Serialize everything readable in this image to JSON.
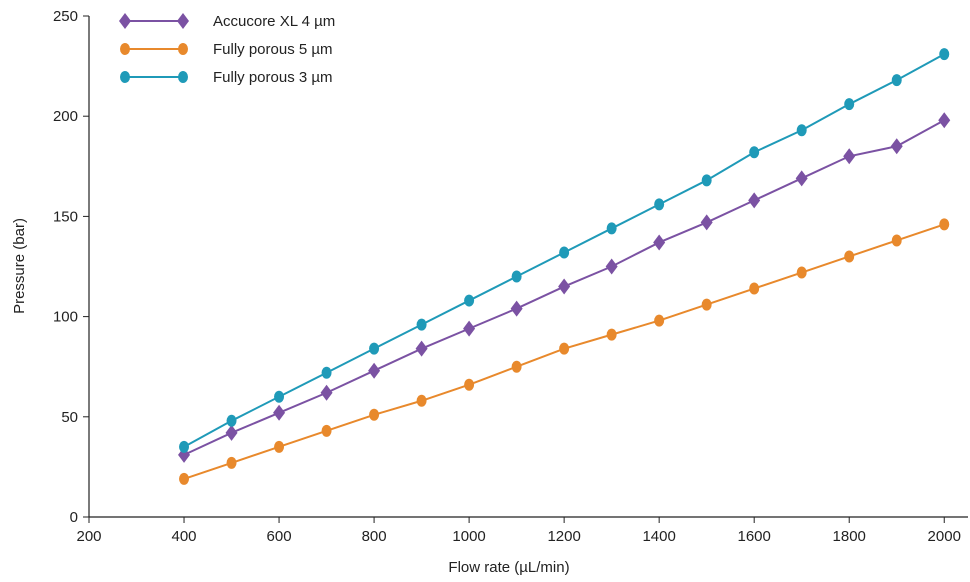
{
  "chart_data": {
    "type": "line",
    "title": "",
    "xlabel": "Flow rate (µL/min)",
    "ylabel": "Pressure (bar)",
    "xlim": [
      200,
      2050
    ],
    "ylim": [
      0,
      250
    ],
    "xticks": [
      200,
      400,
      600,
      800,
      1000,
      1200,
      1400,
      1600,
      1800,
      2000
    ],
    "yticks": [
      0,
      50,
      100,
      150,
      200,
      250
    ],
    "grid": false,
    "legend_position": "top-left",
    "x": [
      400,
      500,
      600,
      700,
      800,
      900,
      1000,
      1100,
      1200,
      1300,
      1400,
      1500,
      1600,
      1700,
      1800,
      1900,
      2000
    ],
    "series": [
      {
        "name": "Accucore XL 4 µm",
        "color": "#7b52a3",
        "marker": "diamond",
        "values": [
          31,
          42,
          52,
          62,
          73,
          84,
          94,
          104,
          115,
          125,
          137,
          147,
          158,
          169,
          180,
          185,
          198
        ]
      },
      {
        "name": "Fully porous 5 µm",
        "color": "#e8892c",
        "marker": "circle",
        "values": [
          19,
          27,
          35,
          43,
          51,
          58,
          66,
          75,
          84,
          91,
          98,
          106,
          114,
          122,
          130,
          138,
          146
        ]
      },
      {
        "name": "Fully porous 3 µm",
        "color": "#1f9ab8",
        "marker": "circle",
        "values": [
          35,
          48,
          60,
          72,
          84,
          96,
          108,
          120,
          132,
          144,
          156,
          168,
          182,
          193,
          206,
          218,
          231
        ]
      }
    ]
  }
}
